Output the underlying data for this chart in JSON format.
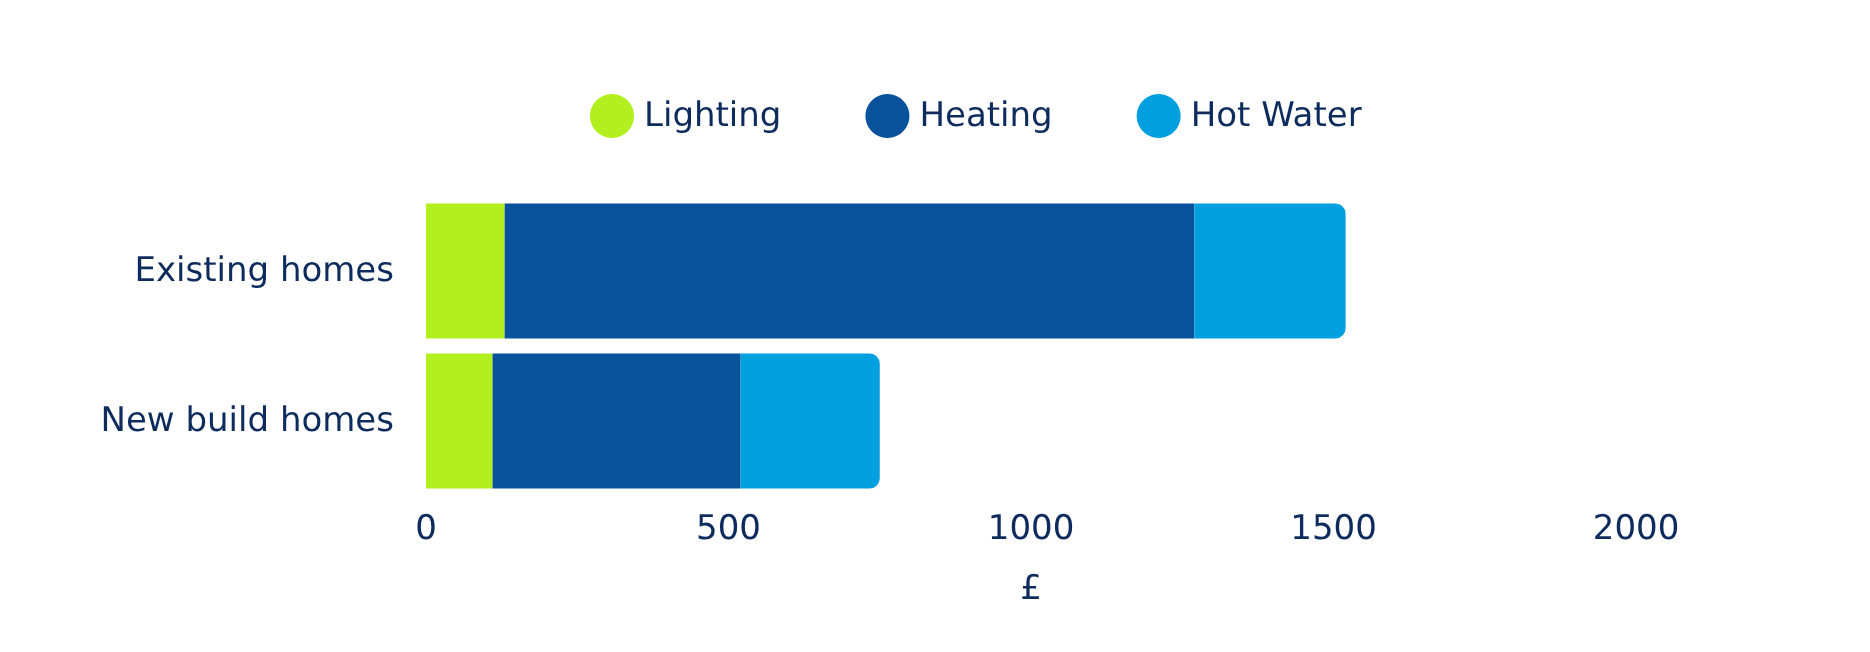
{
  "chart_data": {
    "type": "bar",
    "orientation": "horizontal",
    "stacked": true,
    "categories": [
      "Existing homes",
      "New build homes"
    ],
    "series": [
      {
        "name": "Lighting",
        "color": "#b2ef1f",
        "values": [
          130,
          110
        ]
      },
      {
        "name": "Heating",
        "color": "#08529c",
        "values": [
          1140,
          410
        ]
      },
      {
        "name": "Hot Water",
        "color": "#009fe0",
        "values": [
          250,
          230
        ]
      }
    ],
    "xlabel": "£",
    "xlim": [
      0,
      2000
    ],
    "xticks": [
      0,
      500,
      1000,
      1500,
      2000
    ],
    "grid": false,
    "legend": "top"
  }
}
